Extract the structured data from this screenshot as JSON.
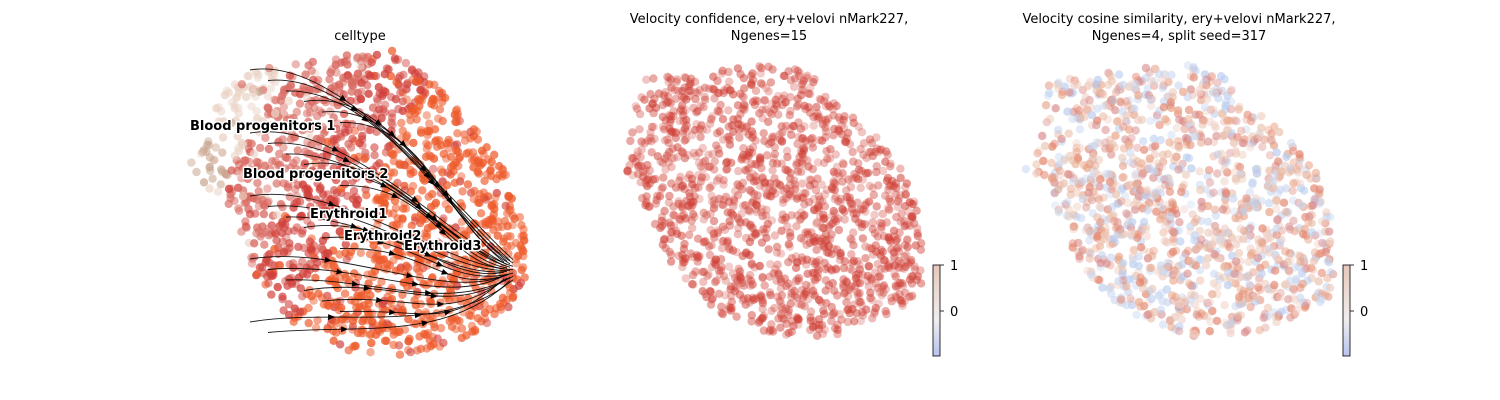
{
  "chart_data": [
    {
      "type": "scatter",
      "title": "celltype",
      "xlabel": "",
      "ylabel": "",
      "axes_visible": false,
      "overlay": "velocity streamlines with arrowheads",
      "cluster_labels": [
        {
          "text": "Blood progenitors 1",
          "color": "#c9a58f"
        },
        {
          "text": "Blood progenitors 2",
          "color": "#ead2c4"
        },
        {
          "text": "Erythroid1",
          "color": "#d96b62"
        },
        {
          "text": "Erythroid2",
          "color": "#d1403a"
        },
        {
          "text": "Erythroid3",
          "color": "#ee5a2a"
        }
      ]
    },
    {
      "type": "scatter",
      "title_line1": "Velocity confidence, ery+velovi nMark227,",
      "title_line2": "Ngenes=15",
      "xlabel": "",
      "ylabel": "",
      "axes_visible": false,
      "colormap": "coolwarm",
      "colorbar_ticks": [
        "1",
        "0"
      ],
      "colorbar_ticks_values": [
        1,
        0
      ],
      "colorbar_range": [
        -0.5,
        1
      ],
      "point_color": "#cf3f35"
    },
    {
      "type": "scatter",
      "title_line1": "Velocity cosine similarity, ery+velovi nMark227,",
      "title_line2": "Ngenes=4, split seed=317",
      "xlabel": "",
      "ylabel": "",
      "axes_visible": false,
      "colormap": "coolwarm",
      "colorbar_ticks": [
        "1",
        "0"
      ],
      "colorbar_ticks_values": [
        1,
        0
      ],
      "colorbar_range": [
        -0.5,
        1
      ],
      "point_colors": [
        "#c9d7f0",
        "#e9c0ab",
        "#e8a285",
        "#d98a8a",
        "#f0cfc4",
        "#b9cdef",
        "#e3826a"
      ]
    }
  ]
}
